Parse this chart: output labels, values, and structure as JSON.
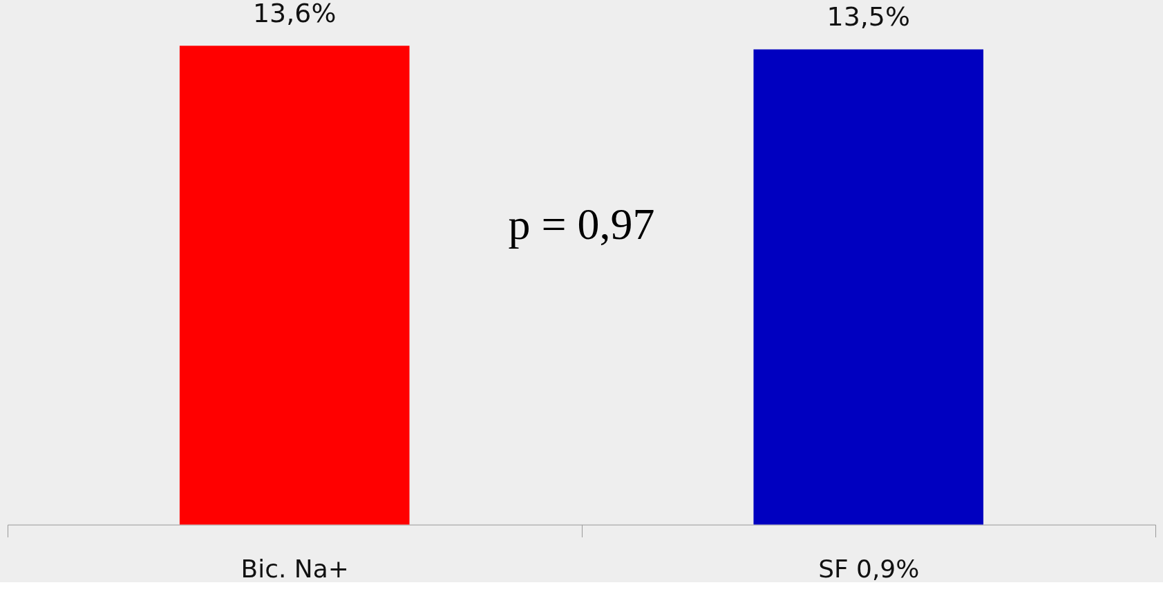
{
  "chart_data": {
    "type": "bar",
    "categories": [
      "Bic. Na+",
      "SF 0,9%"
    ],
    "values": [
      13.6,
      13.5
    ],
    "colors": [
      "#ff0000",
      "#0000c0"
    ],
    "value_labels": [
      "13,6%",
      "13,5%"
    ],
    "annotations": [
      "p = 0,97"
    ],
    "grid": false,
    "legend": false
  }
}
